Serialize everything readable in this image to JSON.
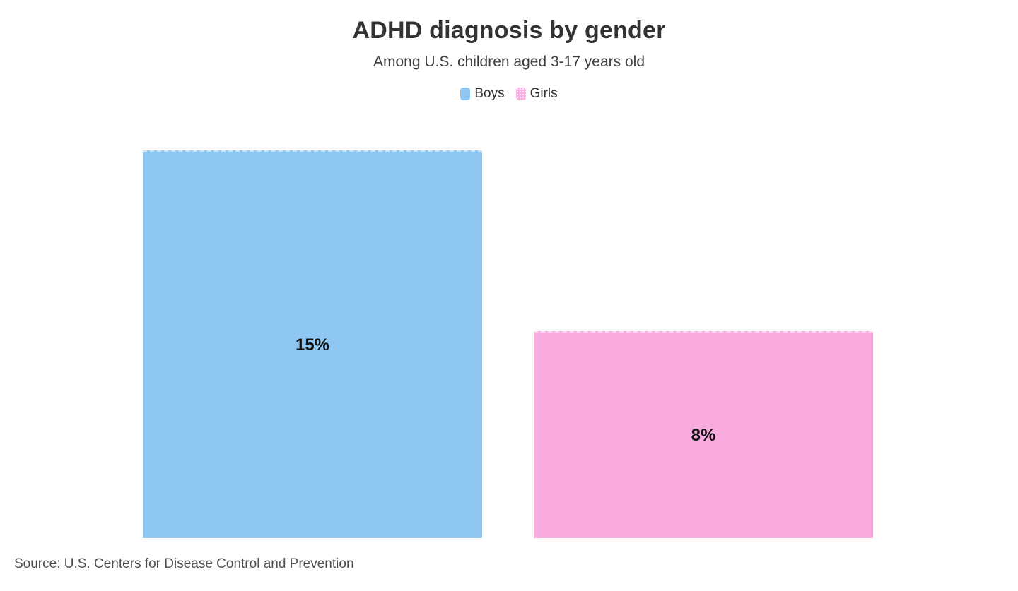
{
  "header": {
    "title": "ADHD diagnosis by gender",
    "subtitle": "Among U.S. children aged 3-17 years old"
  },
  "legend": {
    "items": [
      {
        "label": "Boys",
        "color": "#8DC7F2",
        "pattern": "solid"
      },
      {
        "label": "Girls",
        "color": "#F9ABE0",
        "pattern": "dots"
      }
    ]
  },
  "chart_data": {
    "type": "bar",
    "categories": [
      "Boys",
      "Girls"
    ],
    "values": [
      15,
      8
    ],
    "value_labels": [
      "15%",
      "8%"
    ],
    "series_colors": [
      "#8DC7F2",
      "#F9ABE0"
    ],
    "title": "ADHD diagnosis by gender",
    "subtitle": "Among U.S. children aged 3-17 years old",
    "xlabel": "",
    "ylabel": "",
    "ylim": [
      0,
      15
    ],
    "grid": false,
    "legend_position": "top",
    "value_label_position": "inside-center",
    "value_label_color": "#111111"
  },
  "footer": {
    "source": "Source: U.S. Centers for Disease Control and Prevention"
  }
}
